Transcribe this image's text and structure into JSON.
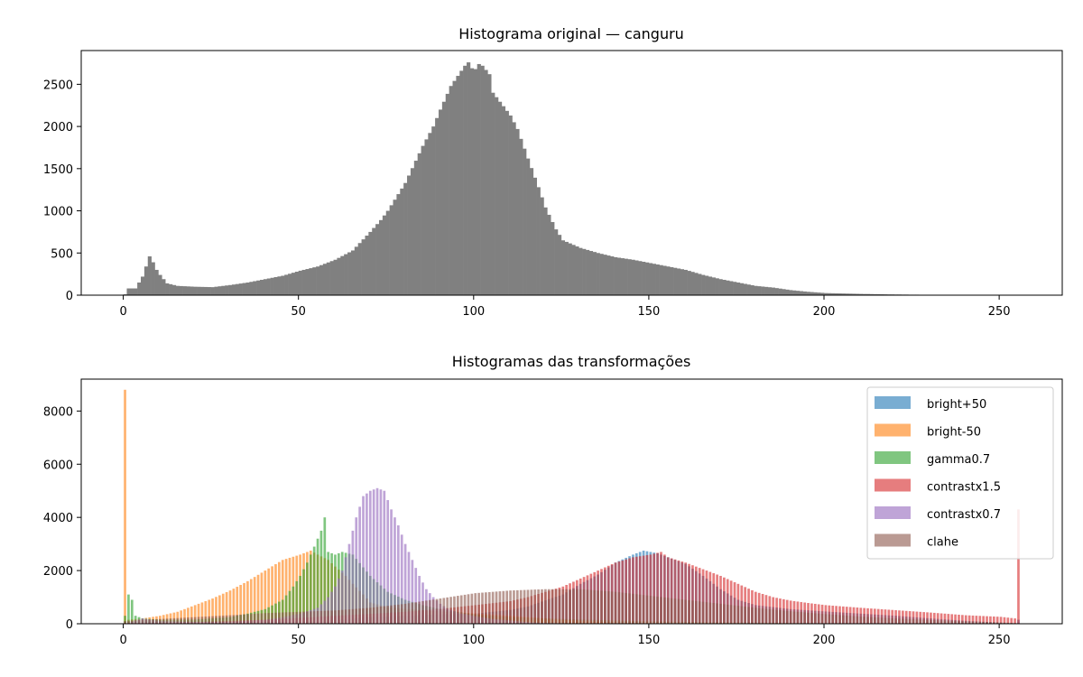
{
  "chart_data": [
    {
      "type": "bar",
      "title": "Histograma original — canguru",
      "xlabel": "",
      "ylabel": "",
      "xlim": [
        -12,
        268
      ],
      "ylim": [
        0,
        2900
      ],
      "xticks": [
        0,
        50,
        100,
        150,
        200,
        250
      ],
      "yticks": [
        0,
        500,
        1000,
        1500,
        2000,
        2500
      ],
      "grid": false,
      "color": "#808080",
      "bins": 256,
      "anchors": [
        [
          0,
          10
        ],
        [
          1,
          80
        ],
        [
          3,
          80
        ],
        [
          4,
          150
        ],
        [
          5,
          220
        ],
        [
          6,
          340
        ],
        [
          7,
          460
        ],
        [
          8,
          390
        ],
        [
          9,
          300
        ],
        [
          10,
          240
        ],
        [
          12,
          140
        ],
        [
          15,
          110
        ],
        [
          20,
          100
        ],
        [
          25,
          95
        ],
        [
          30,
          120
        ],
        [
          35,
          150
        ],
        [
          40,
          190
        ],
        [
          45,
          230
        ],
        [
          50,
          290
        ],
        [
          55,
          340
        ],
        [
          60,
          420
        ],
        [
          65,
          530
        ],
        [
          70,
          750
        ],
        [
          73,
          890
        ],
        [
          75,
          1000
        ],
        [
          80,
          1330
        ],
        [
          85,
          1770
        ],
        [
          88,
          2000
        ],
        [
          90,
          2200
        ],
        [
          93,
          2480
        ],
        [
          95,
          2600
        ],
        [
          97,
          2720
        ],
        [
          98,
          2760
        ],
        [
          99,
          2690
        ],
        [
          100,
          2680
        ],
        [
          101,
          2740
        ],
        [
          102,
          2720
        ],
        [
          104,
          2620
        ],
        [
          105,
          2400
        ],
        [
          108,
          2240
        ],
        [
          110,
          2130
        ],
        [
          112,
          1970
        ],
        [
          115,
          1620
        ],
        [
          118,
          1280
        ],
        [
          120,
          1040
        ],
        [
          123,
          780
        ],
        [
          125,
          650
        ],
        [
          130,
          560
        ],
        [
          135,
          500
        ],
        [
          140,
          450
        ],
        [
          145,
          420
        ],
        [
          150,
          380
        ],
        [
          155,
          340
        ],
        [
          160,
          300
        ],
        [
          165,
          240
        ],
        [
          170,
          190
        ],
        [
          175,
          150
        ],
        [
          180,
          110
        ],
        [
          185,
          90
        ],
        [
          190,
          60
        ],
        [
          195,
          40
        ],
        [
          200,
          25
        ],
        [
          210,
          15
        ],
        [
          220,
          8
        ],
        [
          230,
          4
        ],
        [
          240,
          2
        ],
        [
          255,
          0
        ]
      ],
      "series": [
        {
          "name": "",
          "values": []
        }
      ]
    },
    {
      "type": "bar",
      "title": "Histogramas das transformações",
      "xlabel": "",
      "ylabel": "",
      "xlim": [
        -12,
        268
      ],
      "ylim": [
        0,
        9200
      ],
      "xticks": [
        0,
        50,
        100,
        150,
        200,
        250
      ],
      "yticks": [
        0,
        2000,
        4000,
        6000,
        8000
      ],
      "grid": false,
      "legend_position": "top-right",
      "alpha": 0.6,
      "series": [
        {
          "name": "bright+50",
          "color": "#1f77b4",
          "anchors": [
            [
              50,
              90
            ],
            [
              55,
              100
            ],
            [
              60,
              130
            ],
            [
              70,
              250
            ],
            [
              80,
              300
            ],
            [
              90,
              350
            ],
            [
              100,
              380
            ],
            [
              110,
              520
            ],
            [
              115,
              650
            ],
            [
              120,
              880
            ],
            [
              125,
              1100
            ],
            [
              130,
              1500
            ],
            [
              135,
              1850
            ],
            [
              140,
              2300
            ],
            [
              145,
              2600
            ],
            [
              148,
              2750
            ],
            [
              150,
              2700
            ],
            [
              152,
              2650
            ],
            [
              155,
              2500
            ],
            [
              160,
              2250
            ],
            [
              165,
              1800
            ],
            [
              170,
              1300
            ],
            [
              175,
              900
            ],
            [
              180,
              700
            ],
            [
              190,
              550
            ],
            [
              200,
              460
            ],
            [
              210,
              380
            ],
            [
              220,
              300
            ],
            [
              230,
              200
            ],
            [
              240,
              110
            ],
            [
              250,
              40
            ],
            [
              254,
              20
            ],
            [
              255,
              150
            ]
          ]
        },
        {
          "name": "bright-50",
          "color": "#ff7f0e",
          "anchors": [
            [
              0,
              8800
            ],
            [
              1,
              150
            ],
            [
              5,
              200
            ],
            [
              10,
              300
            ],
            [
              15,
              450
            ],
            [
              20,
              700
            ],
            [
              25,
              950
            ],
            [
              30,
              1250
            ],
            [
              35,
              1600
            ],
            [
              40,
              2000
            ],
            [
              45,
              2400
            ],
            [
              50,
              2600
            ],
            [
              53,
              2750
            ],
            [
              55,
              2600
            ],
            [
              58,
              2400
            ],
            [
              60,
              2150
            ],
            [
              63,
              1800
            ],
            [
              65,
              1500
            ],
            [
              68,
              1100
            ],
            [
              70,
              800
            ],
            [
              75,
              620
            ],
            [
              80,
              560
            ],
            [
              90,
              460
            ],
            [
              100,
              390
            ],
            [
              110,
              300
            ],
            [
              120,
              200
            ],
            [
              130,
              110
            ],
            [
              140,
              50
            ],
            [
              150,
              20
            ],
            [
              160,
              10
            ],
            [
              170,
              5
            ],
            [
              180,
              2
            ],
            [
              190,
              1
            ],
            [
              205,
              0
            ]
          ]
        },
        {
          "name": "gamma0.7",
          "color": "#2ca02c",
          "anchors": [
            [
              0,
              300
            ],
            [
              1,
              1100
            ],
            [
              2,
              900
            ],
            [
              3,
              300
            ],
            [
              5,
              200
            ],
            [
              10,
              150
            ],
            [
              20,
              160
            ],
            [
              30,
              250
            ],
            [
              35,
              380
            ],
            [
              40,
              550
            ],
            [
              45,
              900
            ],
            [
              48,
              1400
            ],
            [
              50,
              1800
            ],
            [
              52,
              2300
            ],
            [
              54,
              2900
            ],
            [
              56,
              3500
            ],
            [
              57,
              4000
            ],
            [
              58,
              2700
            ],
            [
              60,
              2600
            ],
            [
              62,
              2700
            ],
            [
              65,
              2600
            ],
            [
              70,
              1800
            ],
            [
              75,
              1200
            ],
            [
              80,
              900
            ],
            [
              85,
              700
            ],
            [
              90,
              550
            ],
            [
              95,
              450
            ],
            [
              100,
              350
            ],
            [
              110,
              260
            ],
            [
              120,
              200
            ],
            [
              130,
              160
            ],
            [
              140,
              120
            ],
            [
              150,
              90
            ],
            [
              160,
              70
            ],
            [
              170,
              50
            ],
            [
              180,
              40
            ],
            [
              190,
              30
            ],
            [
              200,
              20
            ],
            [
              220,
              15
            ],
            [
              240,
              10
            ],
            [
              255,
              5
            ]
          ]
        },
        {
          "name": "contrastx1.5",
          "color": "#d62728",
          "anchors": [
            [
              0,
              30
            ],
            [
              10,
              40
            ],
            [
              20,
              60
            ],
            [
              30,
              100
            ],
            [
              40,
              150
            ],
            [
              50,
              220
            ],
            [
              60,
              300
            ],
            [
              70,
              370
            ],
            [
              80,
              450
            ],
            [
              90,
              560
            ],
            [
              100,
              700
            ],
            [
              110,
              850
            ],
            [
              115,
              1000
            ],
            [
              120,
              1200
            ],
            [
              125,
              1400
            ],
            [
              130,
              1700
            ],
            [
              135,
              2000
            ],
            [
              140,
              2300
            ],
            [
              145,
              2500
            ],
            [
              150,
              2600
            ],
            [
              153,
              2700
            ],
            [
              155,
              2500
            ],
            [
              160,
              2300
            ],
            [
              165,
              2050
            ],
            [
              170,
              1800
            ],
            [
              175,
              1500
            ],
            [
              180,
              1200
            ],
            [
              185,
              1000
            ],
            [
              190,
              870
            ],
            [
              195,
              780
            ],
            [
              200,
              700
            ],
            [
              210,
              600
            ],
            [
              220,
              510
            ],
            [
              230,
              420
            ],
            [
              240,
              320
            ],
            [
              250,
              260
            ],
            [
              254,
              200
            ],
            [
              255,
              4300
            ]
          ]
        },
        {
          "name": "contrastx0.7",
          "color": "#9467bd",
          "anchors": [
            [
              0,
              0
            ],
            [
              5,
              200
            ],
            [
              10,
              100
            ],
            [
              20,
              70
            ],
            [
              30,
              80
            ],
            [
              40,
              150
            ],
            [
              45,
              250
            ],
            [
              50,
              380
            ],
            [
              55,
              600
            ],
            [
              58,
              1000
            ],
            [
              60,
              1400
            ],
            [
              62,
              2000
            ],
            [
              64,
              3000
            ],
            [
              66,
              4000
            ],
            [
              68,
              4800
            ],
            [
              70,
              5000
            ],
            [
              72,
              5100
            ],
            [
              74,
              5000
            ],
            [
              76,
              4300
            ],
            [
              78,
              3700
            ],
            [
              80,
              3000
            ],
            [
              82,
              2400
            ],
            [
              84,
              1800
            ],
            [
              86,
              1300
            ],
            [
              88,
              1000
            ],
            [
              90,
              750
            ],
            [
              92,
              570
            ],
            [
              95,
              420
            ],
            [
              100,
              280
            ],
            [
              105,
              180
            ],
            [
              110,
              120
            ],
            [
              115,
              60
            ],
            [
              120,
              30
            ],
            [
              130,
              10
            ],
            [
              140,
              3
            ],
            [
              150,
              0
            ]
          ]
        },
        {
          "name": "clahe",
          "color": "#8c564b",
          "anchors": [
            [
              0,
              100
            ],
            [
              5,
              150
            ],
            [
              10,
              180
            ],
            [
              20,
              250
            ],
            [
              30,
              320
            ],
            [
              40,
              400
            ],
            [
              50,
              450
            ],
            [
              60,
              500
            ],
            [
              70,
              600
            ],
            [
              80,
              750
            ],
            [
              90,
              950
            ],
            [
              100,
              1150
            ],
            [
              110,
              1250
            ],
            [
              120,
              1300
            ],
            [
              130,
              1300
            ],
            [
              140,
              1200
            ],
            [
              150,
              1050
            ],
            [
              160,
              900
            ],
            [
              170,
              750
            ],
            [
              180,
              600
            ],
            [
              190,
              470
            ],
            [
              200,
              360
            ],
            [
              210,
              270
            ],
            [
              220,
              200
            ],
            [
              230,
              140
            ],
            [
              240,
              90
            ],
            [
              250,
              50
            ],
            [
              255,
              20
            ]
          ]
        }
      ]
    }
  ]
}
